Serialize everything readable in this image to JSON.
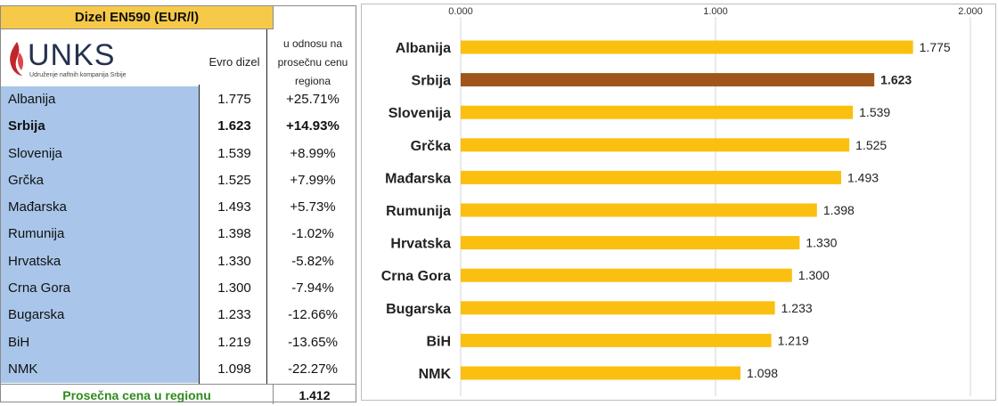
{
  "table": {
    "title": "Dizel EN590 (EUR/l)",
    "logo_text": "UNKS",
    "logo_sub": "Udruženje naftnih kompanija Srbije",
    "col_euro": "Evro dizel",
    "col_pct": [
      "u odnosu na",
      "prosečnu cenu",
      "regiona"
    ],
    "rows": [
      {
        "name": "Albanija",
        "value": "1.775",
        "pct": "+25.71%",
        "bold": false
      },
      {
        "name": "Srbija",
        "value": "1.623",
        "pct": "+14.93%",
        "bold": true
      },
      {
        "name": "Slovenija",
        "value": "1.539",
        "pct": "+8.99%",
        "bold": false
      },
      {
        "name": "Grčka",
        "value": "1.525",
        "pct": "+7.99%",
        "bold": false
      },
      {
        "name": "Mađarska",
        "value": "1.493",
        "pct": "+5.73%",
        "bold": false
      },
      {
        "name": "Rumunija",
        "value": "1.398",
        "pct": "-1.02%",
        "bold": false
      },
      {
        "name": "Hrvatska",
        "value": "1.330",
        "pct": "-5.82%",
        "bold": false
      },
      {
        "name": "Crna Gora",
        "value": "1.300",
        "pct": "-7.94%",
        "bold": false
      },
      {
        "name": "Bugarska",
        "value": "1.233",
        "pct": "-12.66%",
        "bold": false
      },
      {
        "name": "BiH",
        "value": "1.219",
        "pct": "-13.65%",
        "bold": false
      },
      {
        "name": "NMK",
        "value": "1.098",
        "pct": "-22.27%",
        "bold": false
      }
    ],
    "avg_label": "Prosečna cena u regionu",
    "avg_value": "1.412"
  },
  "chart_data": {
    "type": "bar",
    "orientation": "horizontal",
    "categories": [
      "Albanija",
      "Srbija",
      "Slovenija",
      "Grčka",
      "Mađarska",
      "Rumunija",
      "Hrvatska",
      "Crna Gora",
      "Bugarska",
      "BiH",
      "NMK"
    ],
    "values": [
      1.775,
      1.623,
      1.539,
      1.525,
      1.493,
      1.398,
      1.33,
      1.3,
      1.233,
      1.219,
      1.098
    ],
    "value_labels": [
      "1.775",
      "1.623",
      "1.539",
      "1.525",
      "1.493",
      "1.398",
      "1.330",
      "1.300",
      "1.233",
      "1.219",
      "1.098"
    ],
    "highlight": "Srbija",
    "xlim": [
      0,
      2
    ],
    "ticks": [
      0,
      1,
      2
    ],
    "tick_labels": [
      "0.000",
      "1.000",
      "2.000"
    ],
    "axis_position": "top",
    "grid": true,
    "colors": {
      "bar": "#fbbf0f",
      "highlight": "#a0561a",
      "grid": "#d4d4d4"
    }
  }
}
